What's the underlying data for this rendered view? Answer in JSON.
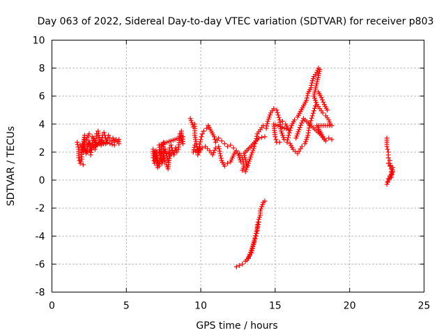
{
  "chart_data": {
    "type": "scatter",
    "title": "Day 063 of 2022, Sidereal Day-to-day VTEC variation (SDTVAR) for receiver p803",
    "xlabel": "GPS time / hours",
    "ylabel": "SDTVAR / TECUs",
    "xlim": [
      0,
      25
    ],
    "ylim": [
      -8,
      10
    ],
    "xticks": [
      0,
      5,
      10,
      15,
      20,
      25
    ],
    "yticks": [
      -8,
      -6,
      -4,
      -2,
      0,
      2,
      4,
      6,
      8,
      10
    ],
    "grid": true,
    "marker": "plus",
    "series": [
      {
        "name": "SDTVAR",
        "color": "#ff0000",
        "segments": [
          [
            [
              1.7,
              2.7
            ],
            [
              1.8,
              2.2
            ],
            [
              1.8,
              1.6
            ],
            [
              1.9,
              1.2
            ],
            [
              2.0,
              1.5
            ],
            [
              2.0,
              2.3
            ],
            [
              2.1,
              2.0
            ],
            [
              2.1,
              2.6
            ],
            [
              2.2,
              3.2
            ],
            [
              2.2,
              2.2
            ],
            [
              2.3,
              1.9
            ],
            [
              2.4,
              2.4
            ],
            [
              2.5,
              2.8
            ],
            [
              2.6,
              2.2
            ],
            [
              2.6,
              1.8
            ],
            [
              2.7,
              2.5
            ],
            [
              2.8,
              3.0
            ],
            [
              2.9,
              2.7
            ],
            [
              2.9,
              2.2
            ],
            [
              3.0,
              3.3
            ],
            [
              3.1,
              3.5
            ],
            [
              3.2,
              2.9
            ],
            [
              3.3,
              2.5
            ],
            [
              3.4,
              3.2
            ],
            [
              3.5,
              3.4
            ],
            [
              3.6,
              3.0
            ],
            [
              3.7,
              2.7
            ],
            [
              3.8,
              3.2
            ],
            [
              3.9,
              3.0
            ],
            [
              4.0,
              2.8
            ],
            [
              4.1,
              3.0
            ],
            [
              4.2,
              2.7
            ],
            [
              4.3,
              2.9
            ],
            [
              4.4,
              2.8
            ],
            [
              4.5,
              2.6
            ],
            [
              4.5,
              2.9
            ],
            [
              2.3,
              2.9
            ],
            [
              2.5,
              3.3
            ],
            [
              2.7,
              3.1
            ],
            [
              3.0,
              2.5
            ],
            [
              3.3,
              2.8
            ],
            [
              3.6,
              2.6
            ],
            [
              1.9,
              2.5
            ],
            [
              2.4,
              2.0
            ],
            [
              2.8,
              2.3
            ],
            [
              3.1,
              2.6
            ],
            [
              3.5,
              2.7
            ],
            [
              3.9,
              2.6
            ],
            [
              4.2,
              2.5
            ],
            [
              2.1,
              1.1
            ]
          ],
          [
            [
              6.8,
              2.2
            ],
            [
              6.8,
              1.6
            ],
            [
              6.9,
              1.2
            ],
            [
              7.0,
              1.8
            ],
            [
              7.0,
              2.1
            ],
            [
              7.1,
              1.4
            ],
            [
              7.2,
              1.0
            ],
            [
              7.3,
              1.6
            ],
            [
              7.4,
              2.4
            ],
            [
              7.5,
              2.7
            ],
            [
              7.5,
              1.9
            ],
            [
              7.6,
              1.3
            ],
            [
              7.7,
              1.1
            ],
            [
              7.8,
              0.8
            ],
            [
              7.9,
              1.7
            ],
            [
              7.9,
              2.3
            ],
            [
              8.0,
              2.5
            ],
            [
              8.1,
              2.1
            ],
            [
              8.2,
              1.8
            ],
            [
              8.3,
              2.3
            ],
            [
              8.4,
              2.0
            ],
            [
              8.5,
              2.2
            ],
            [
              8.6,
              3.3
            ],
            [
              8.7,
              3.5
            ],
            [
              8.7,
              2.9
            ],
            [
              8.8,
              2.6
            ],
            [
              8.8,
              3.1
            ],
            [
              7.2,
              2.5
            ],
            [
              7.4,
              1.2
            ],
            [
              7.6,
              2.2
            ],
            [
              7.8,
              1.4
            ],
            [
              8.0,
              1.9
            ],
            [
              6.9,
              2.0
            ],
            [
              7.1,
              0.9
            ]
          ],
          [
            [
              9.3,
              4.4
            ],
            [
              9.4,
              4.1
            ],
            [
              9.5,
              3.8
            ],
            [
              9.6,
              4.0
            ],
            [
              9.6,
              3.2
            ],
            [
              9.7,
              2.6
            ],
            [
              9.8,
              2.2
            ],
            [
              9.8,
              1.8
            ],
            [
              9.9,
              2.4
            ],
            [
              10.0,
              2.9
            ],
            [
              10.1,
              3.3
            ],
            [
              10.2,
              3.5
            ],
            [
              10.4,
              3.7
            ],
            [
              10.5,
              3.9
            ],
            [
              10.7,
              3.5
            ],
            [
              10.9,
              3.1
            ],
            [
              11.0,
              2.7
            ],
            [
              11.2,
              3.0
            ],
            [
              11.4,
              2.8
            ],
            [
              11.6,
              2.6
            ],
            [
              11.8,
              2.4
            ],
            [
              12.0,
              2.5
            ],
            [
              12.2,
              2.3
            ],
            [
              12.4,
              2.1
            ],
            [
              12.6,
              1.9
            ],
            [
              12.8,
              1.6
            ],
            [
              12.9,
              1.0
            ],
            [
              12.8,
              0.7
            ],
            [
              13.0,
              0.6
            ],
            [
              13.2,
              1.2
            ],
            [
              13.4,
              1.8
            ],
            [
              13.6,
              2.4
            ],
            [
              13.7,
              2.8
            ],
            [
              13.8,
              3.3
            ],
            [
              14.0,
              3.6
            ],
            [
              14.2,
              3.9
            ],
            [
              14.4,
              3.7
            ],
            [
              14.5,
              4.2
            ],
            [
              14.7,
              4.8
            ],
            [
              14.9,
              5.1
            ],
            [
              15.1,
              5.0
            ],
            [
              15.3,
              4.3
            ],
            [
              15.4,
              3.5
            ],
            [
              15.6,
              2.9
            ],
            [
              15.8,
              2.7
            ],
            [
              15.9,
              3.2
            ],
            [
              16.1,
              3.9
            ],
            [
              16.3,
              4.3
            ],
            [
              16.5,
              4.5
            ],
            [
              16.7,
              4.9
            ],
            [
              16.9,
              5.3
            ],
            [
              17.1,
              5.7
            ],
            [
              17.2,
              6.2
            ],
            [
              17.4,
              6.6
            ],
            [
              17.5,
              7.1
            ],
            [
              17.6,
              7.4
            ],
            [
              17.8,
              7.7
            ],
            [
              17.9,
              8.0
            ],
            [
              18.0,
              7.9
            ],
            [
              17.6,
              6.0
            ],
            [
              17.8,
              5.4
            ],
            [
              18.0,
              5.1
            ],
            [
              18.2,
              4.8
            ],
            [
              18.4,
              4.6
            ],
            [
              18.6,
              4.3
            ],
            [
              18.7,
              4.0
            ],
            [
              18.8,
              3.9
            ],
            [
              17.8,
              3.9
            ],
            [
              18.0,
              3.5
            ],
            [
              18.2,
              3.1
            ],
            [
              18.4,
              2.8
            ],
            [
              18.6,
              3.0
            ],
            [
              18.8,
              2.9
            ],
            [
              16.0,
              2.6
            ],
            [
              16.2,
              2.2
            ],
            [
              16.5,
              1.9
            ],
            [
              16.8,
              2.4
            ],
            [
              17.0,
              2.6
            ],
            [
              17.2,
              3.2
            ],
            [
              17.3,
              3.9
            ],
            [
              17.5,
              4.6
            ],
            [
              17.7,
              5.3
            ],
            [
              15.5,
              4.2
            ],
            [
              15.7,
              4.0
            ],
            [
              15.9,
              3.6
            ],
            [
              14.9,
              4.0
            ],
            [
              15.0,
              3.1
            ],
            [
              15.1,
              2.7
            ],
            [
              15.3,
              2.7
            ],
            [
              10.3,
              2.4
            ],
            [
              10.6,
              2.1
            ],
            [
              10.8,
              1.8
            ],
            [
              11.0,
              2.3
            ],
            [
              11.2,
              2.4
            ],
            [
              11.4,
              1.4
            ],
            [
              11.6,
              1.0
            ],
            [
              11.8,
              1.2
            ],
            [
              12.0,
              1.3
            ],
            [
              12.3,
              2.0
            ],
            [
              12.5,
              1.9
            ],
            [
              12.7,
              1.3
            ],
            [
              9.9,
              2.0
            ],
            [
              10.1,
              2.3
            ],
            [
              9.5,
              2.0
            ],
            [
              9.6,
              2.5
            ],
            [
              13.1,
              1.0
            ],
            [
              12.9,
              1.9
            ],
            [
              13.9,
              3.0
            ],
            [
              14.3,
              3.1
            ],
            [
              16.4,
              3.0
            ],
            [
              16.6,
              3.6
            ],
            [
              16.9,
              4.4
            ],
            [
              18.1,
              3.2
            ],
            [
              18.3,
              2.9
            ],
            [
              17.9,
              6.3
            ],
            [
              18.1,
              5.9
            ],
            [
              18.3,
              5.4
            ],
            [
              18.5,
              5.0
            ]
          ],
          [
            [
              12.4,
              -6.2
            ],
            [
              12.6,
              -6.1
            ],
            [
              12.8,
              -6.0
            ],
            [
              13.0,
              -5.8
            ],
            [
              13.2,
              -5.6
            ],
            [
              13.3,
              -5.3
            ],
            [
              13.4,
              -5.0
            ],
            [
              13.5,
              -4.7
            ],
            [
              13.6,
              -4.4
            ],
            [
              13.7,
              -4.0
            ],
            [
              13.8,
              -3.6
            ],
            [
              13.8,
              -3.2
            ],
            [
              13.9,
              -2.8
            ],
            [
              14.0,
              -2.5
            ],
            [
              14.0,
              -2.2
            ],
            [
              14.1,
              -1.9
            ],
            [
              14.2,
              -1.6
            ],
            [
              14.3,
              -1.5
            ],
            [
              13.1,
              -5.7
            ],
            [
              13.4,
              -5.2
            ],
            [
              13.6,
              -4.3
            ],
            [
              13.9,
              -3.0
            ]
          ],
          [
            [
              22.5,
              3.0
            ],
            [
              22.5,
              2.4
            ],
            [
              22.6,
              2.0
            ],
            [
              22.6,
              1.6
            ],
            [
              22.7,
              1.4
            ],
            [
              22.7,
              1.0
            ],
            [
              22.8,
              0.8
            ],
            [
              22.8,
              0.4
            ],
            [
              22.9,
              0.6
            ],
            [
              22.5,
              -0.3
            ],
            [
              22.6,
              0.1
            ],
            [
              22.7,
              0.3
            ],
            [
              22.8,
              0.2
            ],
            [
              22.9,
              0.9
            ],
            [
              22.6,
              1.2
            ]
          ]
        ]
      }
    ]
  }
}
